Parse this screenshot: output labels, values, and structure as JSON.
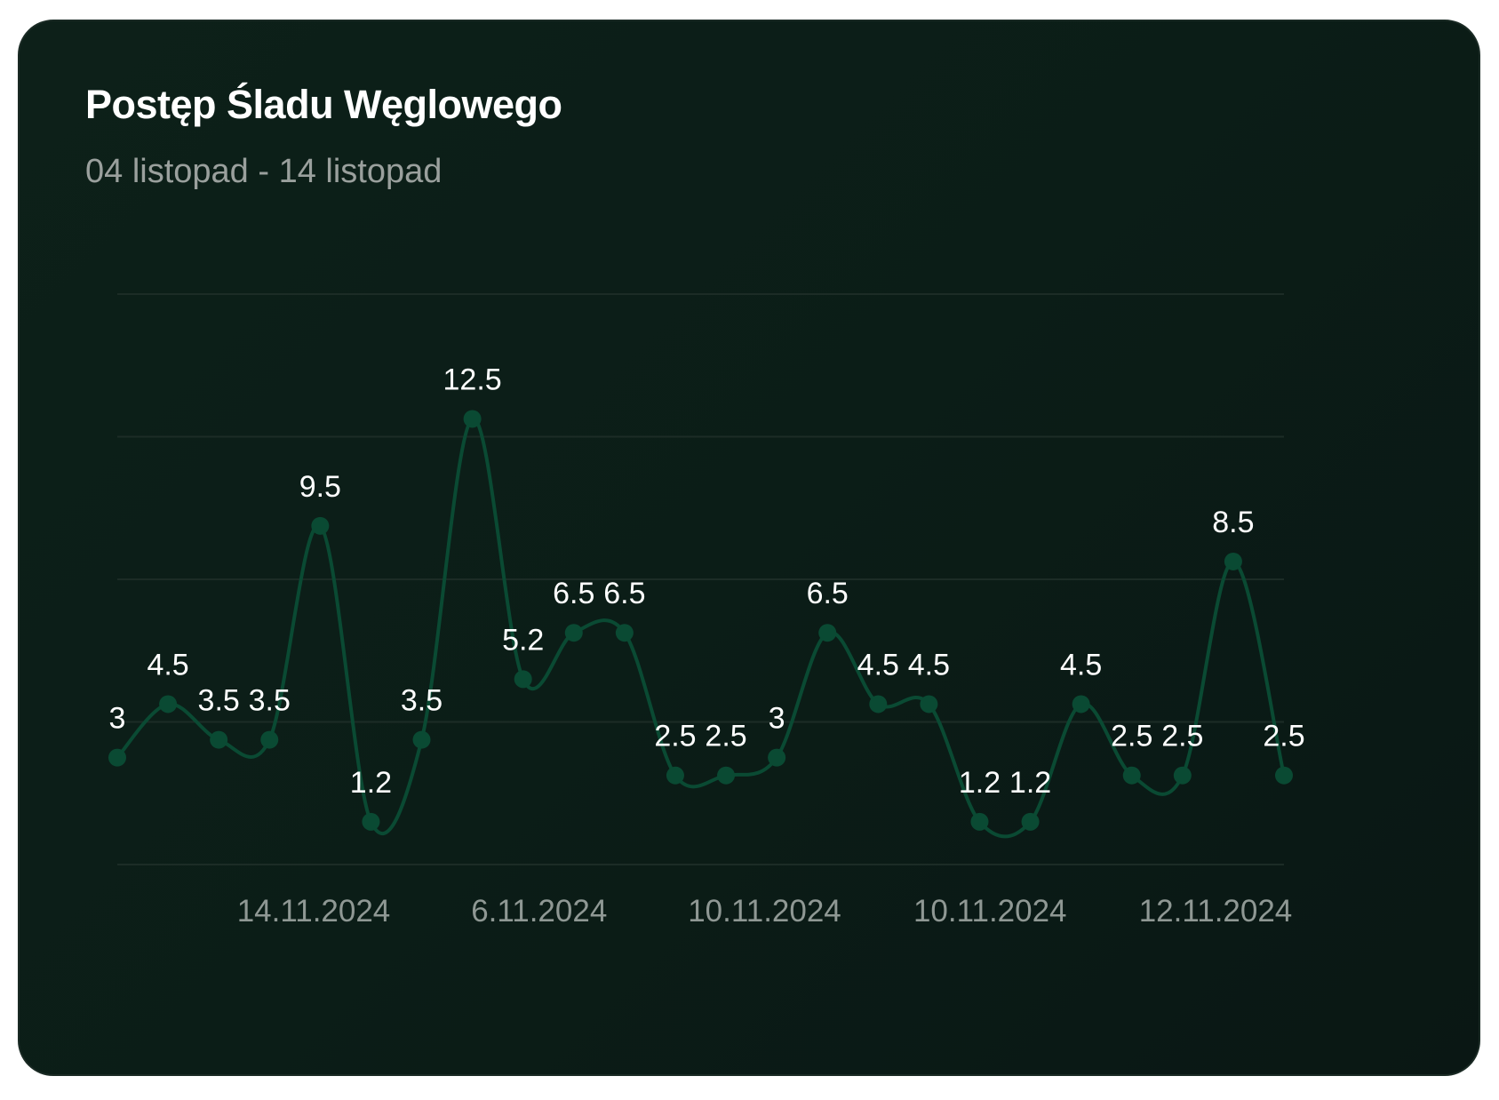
{
  "card": {
    "title": "Postęp Śladu Węglowego",
    "subtitle": "04 listopad - 14 listopad"
  },
  "colors": {
    "background": "#0b1d17",
    "series": "#0a4a33",
    "grid": "#1c2c26",
    "label": "#ffffff",
    "tick": "#8f9894"
  },
  "chart_data": {
    "type": "line",
    "title": "Postęp Śladu Węglowego",
    "subtitle": "04 listopad - 14 listopad",
    "xlabel": "",
    "ylabel": "",
    "ylim": [
      0,
      16
    ],
    "grid": true,
    "smooth": true,
    "x_ticks": [
      "14.11.2024",
      "6.11.2024",
      "10.11.2024",
      "10.11.2024",
      "12.11.2024"
    ],
    "series": [
      {
        "values": [
          3,
          4.5,
          3.5,
          3.5,
          9.5,
          1.2,
          3.5,
          12.5,
          5.2,
          6.5,
          6.5,
          2.5,
          2.5,
          3,
          6.5,
          4.5,
          4.5,
          1.2,
          1.2,
          4.5,
          2.5,
          2.5,
          8.5,
          2.5
        ]
      }
    ]
  }
}
